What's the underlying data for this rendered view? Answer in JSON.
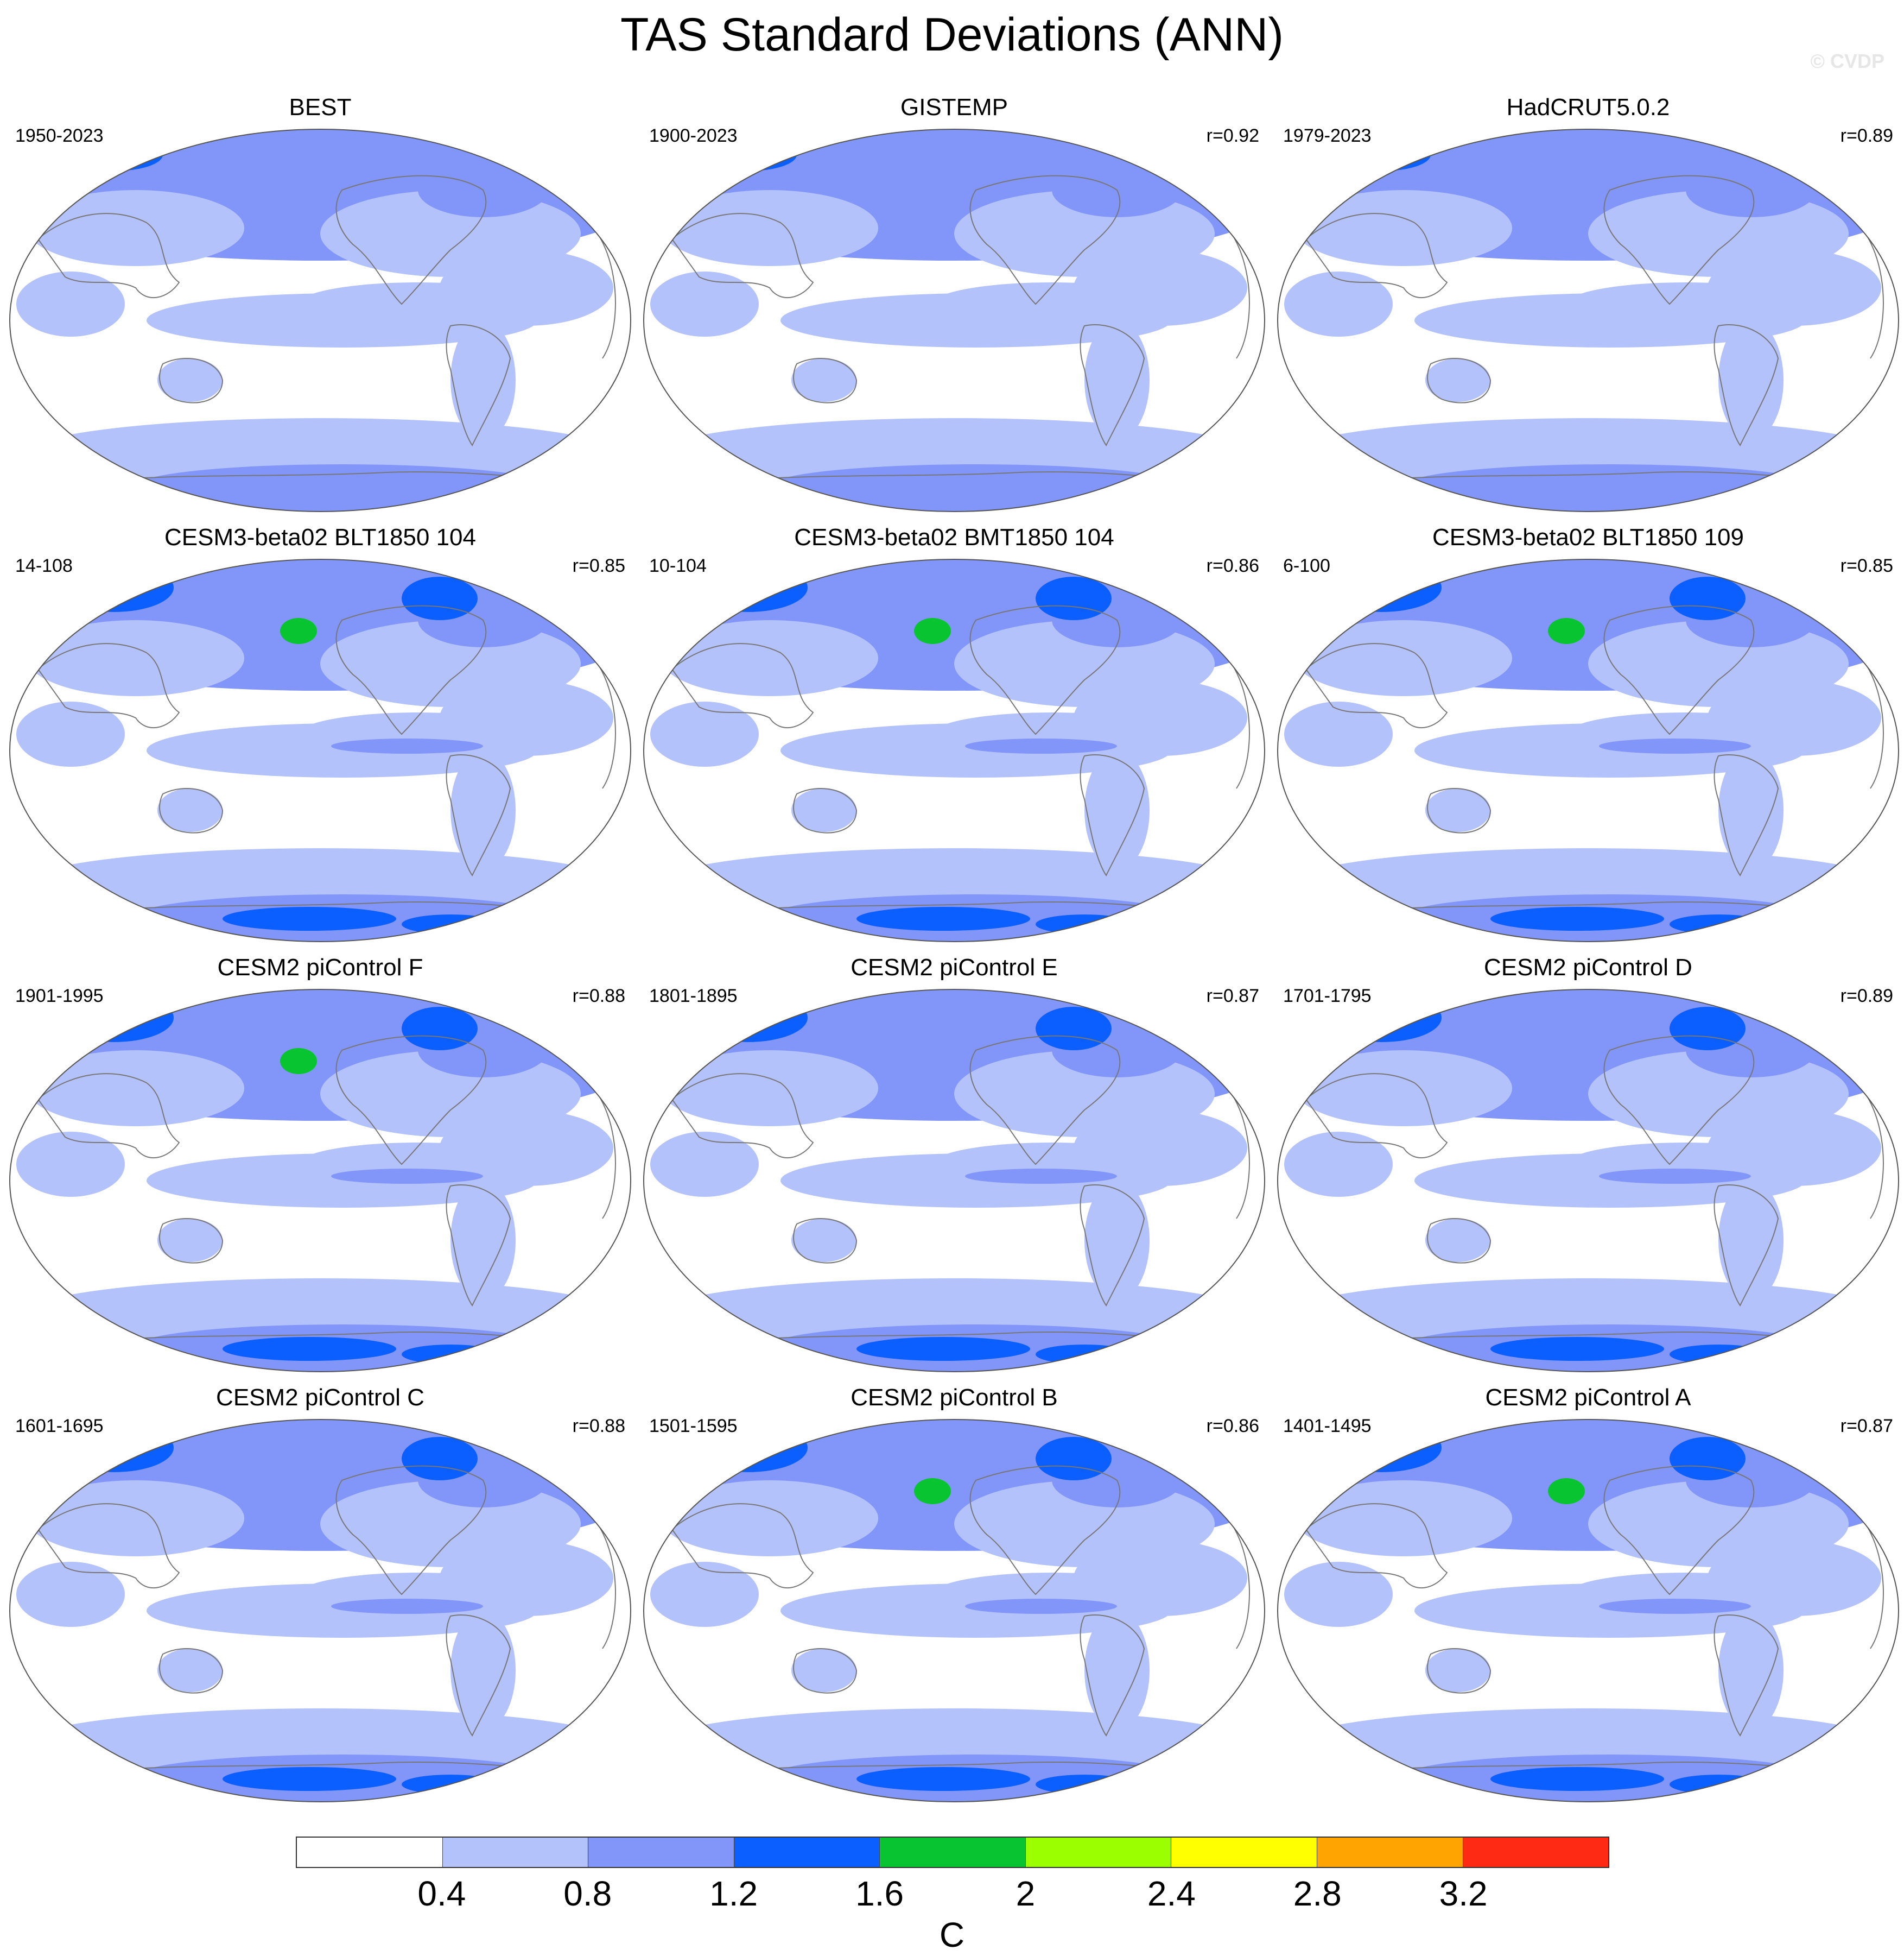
{
  "title": "TAS Standard Deviations (ANN)",
  "watermark": "© CVDP",
  "levels": {
    "colors": [
      "#ffffff",
      "#b4c2fb",
      "#8296f9",
      "#0b5fff",
      "#08c431",
      "#9cff00",
      "#ffff00",
      "#ffa400",
      "#ff2a14"
    ],
    "labels": [
      "0.4",
      "0.8",
      "1.2",
      "1.6",
      "2",
      "2.4",
      "2.8",
      "3.2"
    ],
    "units": "C"
  },
  "panels": [
    {
      "title": "BEST",
      "period": "1950-2023",
      "r": "",
      "intensity": 0.75
    },
    {
      "title": "GISTEMP",
      "period": "1900-2023",
      "r": "r=0.92",
      "intensity": 0.7
    },
    {
      "title": "HadCRUT5.0.2",
      "period": "1979-2023",
      "r": "r=0.89",
      "intensity": 0.6
    },
    {
      "title": "CESM3-beta02 BLT1850 104",
      "period": "14-108",
      "r": "r=0.85",
      "intensity": 1.3
    },
    {
      "title": "CESM3-beta02 BMT1850 104",
      "period": "10-104",
      "r": "r=0.86",
      "intensity": 1.4
    },
    {
      "title": "CESM3-beta02 BLT1850 109",
      "period": "6-100",
      "r": "r=0.85",
      "intensity": 1.3
    },
    {
      "title": "CESM2 piControl F",
      "period": "1901-1995",
      "r": "r=0.88",
      "intensity": 1.05
    },
    {
      "title": "CESM2 piControl E",
      "period": "1801-1895",
      "r": "r=0.87",
      "intensity": 1.0
    },
    {
      "title": "CESM2 piControl D",
      "period": "1701-1795",
      "r": "r=0.89",
      "intensity": 1.0
    },
    {
      "title": "CESM2 piControl C",
      "period": "1601-1695",
      "r": "r=0.88",
      "intensity": 1.0
    },
    {
      "title": "CESM2 piControl B",
      "period": "1501-1595",
      "r": "r=0.86",
      "intensity": 1.05
    },
    {
      "title": "CESM2 piControl A",
      "period": "1401-1495",
      "r": "r=0.87",
      "intensity": 1.15
    }
  ]
}
